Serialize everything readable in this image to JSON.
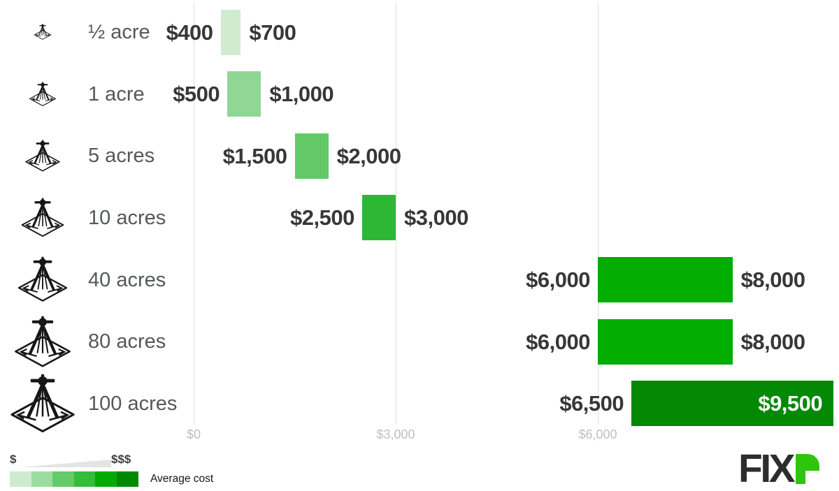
{
  "chart_data": {
    "type": "bar",
    "subtype": "horizontal-range-bars",
    "categories": [
      "½ acre",
      "1 acre",
      "5 acres",
      "10 acres",
      "40 acres",
      "80 acres",
      "100 acres"
    ],
    "rows": [
      {
        "label": "½ acre",
        "min": 400,
        "max": 700,
        "min_label": "$400",
        "max_label": "$700",
        "color": "#cfecd1",
        "icon_scale": 26
      },
      {
        "label": "1 acre",
        "min": 500,
        "max": 1000,
        "min_label": "$500",
        "max_label": "$1,000",
        "color": "#90d795",
        "icon_scale": 40
      },
      {
        "label": "5 acres",
        "min": 1500,
        "max": 2000,
        "min_label": "$1,500",
        "max_label": "$2,000",
        "color": "#63c968",
        "icon_scale": 52
      },
      {
        "label": "10 acres",
        "min": 2500,
        "max": 3000,
        "min_label": "$2,500",
        "max_label": "$3,000",
        "color": "#2db834",
        "icon_scale": 64
      },
      {
        "label": "40 acres",
        "min": 6000,
        "max": 8000,
        "min_label": "$6,000",
        "max_label": "$8,000",
        "color": "#02ad02",
        "icon_scale": 74
      },
      {
        "label": "80 acres",
        "min": 6000,
        "max": 8000,
        "min_label": "$6,000",
        "max_label": "$8,000",
        "color": "#02ad02",
        "icon_scale": 84
      },
      {
        "label": "100 acres",
        "min": 6500,
        "max": 9500,
        "min_label": "$6,500",
        "max_label": "$9,500",
        "color": "#048904",
        "icon_scale": 96,
        "max_label_inside": true
      }
    ],
    "x_axis": {
      "min": 0,
      "max": 9500,
      "grid": true,
      "ticks": [
        {
          "value": 0,
          "label": "$0"
        },
        {
          "value": 3000,
          "label": "$3,000"
        },
        {
          "value": 6000,
          "label": "$6,000"
        }
      ]
    },
    "legend_position": "bottom-left"
  },
  "legend": {
    "low_symbol": "$",
    "high_symbol": "$$$",
    "caption": "Average cost",
    "wedge_color": "#e4e4e4",
    "gradient_colors": [
      "#cdeccf",
      "#9cdc9f",
      "#63cb67",
      "#35bd3a",
      "#02ab02",
      "#018901"
    ]
  },
  "logo": {
    "text": "FIX",
    "text_color": "#2d2d2d",
    "r_color": "#2fc40e"
  }
}
